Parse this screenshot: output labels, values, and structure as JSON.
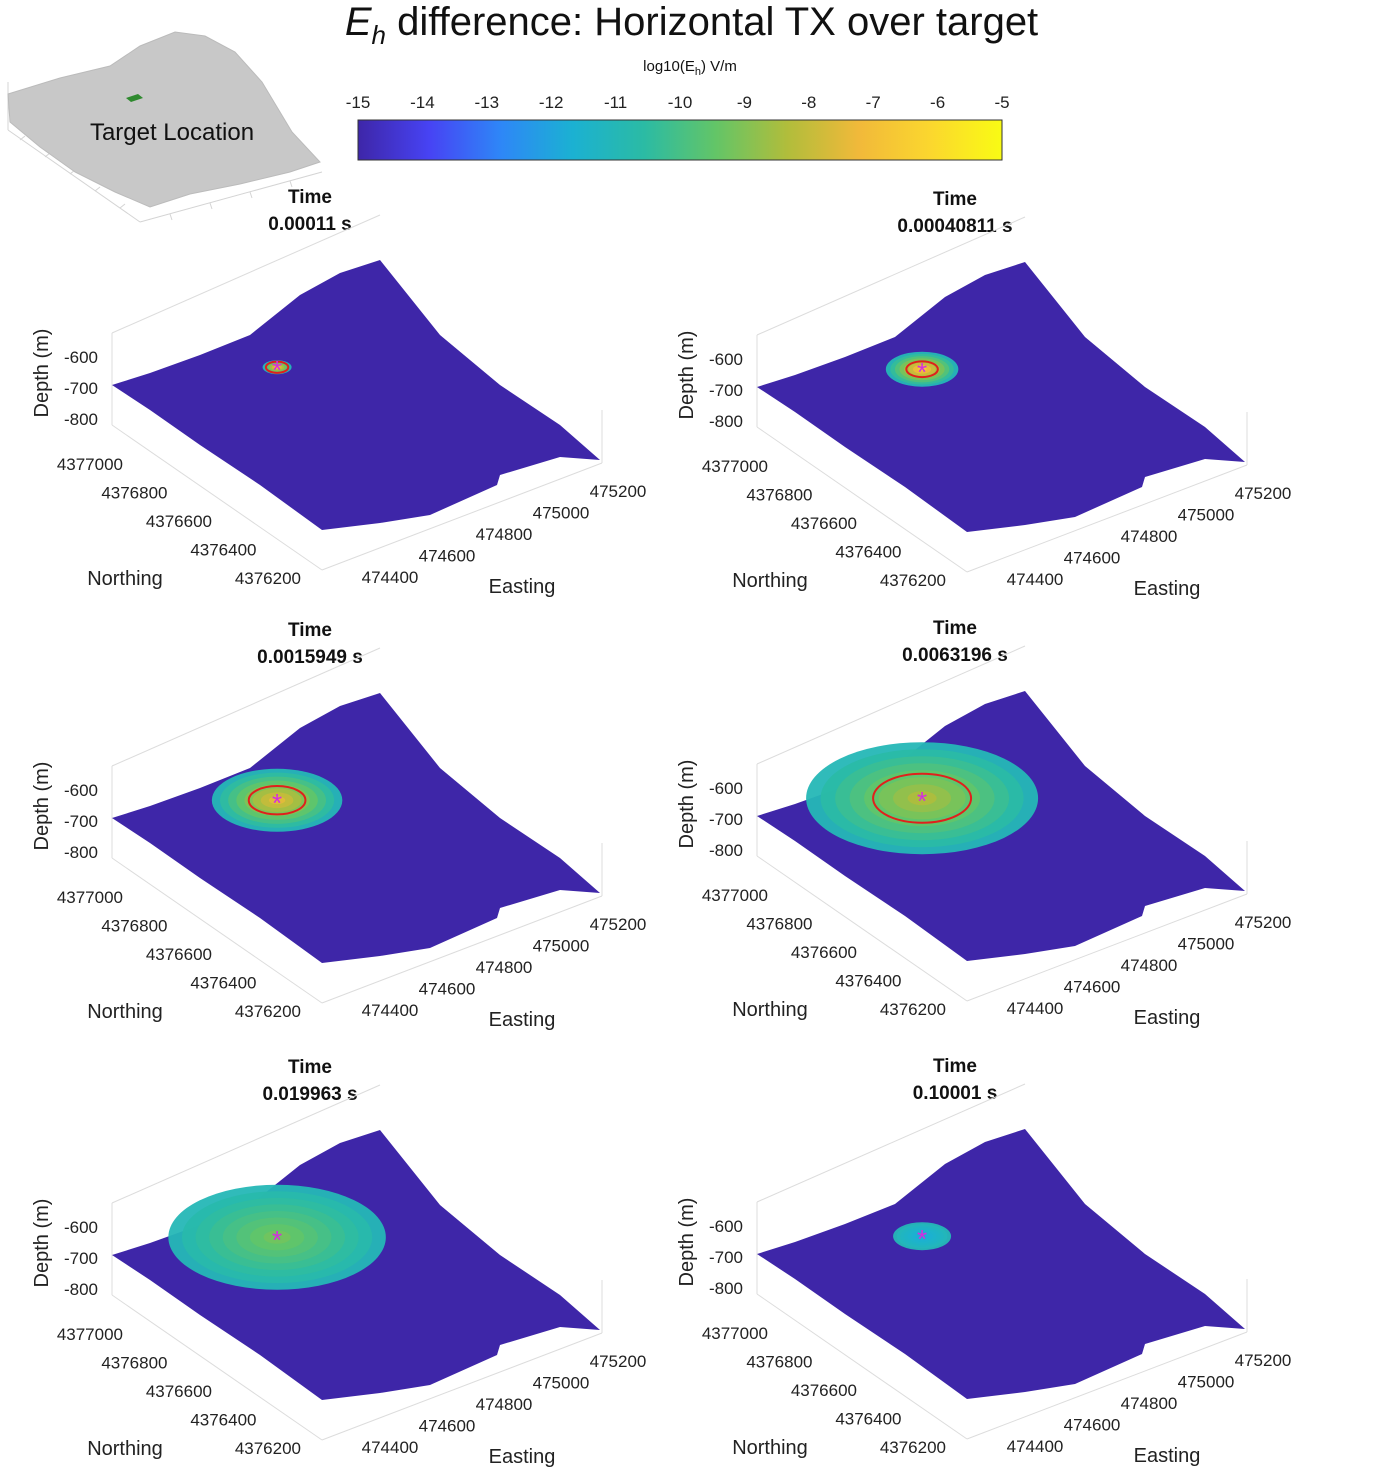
{
  "figure": {
    "title_symbol": "E",
    "title_subscript": "h",
    "title_rest": " difference: Horizontal TX over target",
    "inset_label": "Target Location"
  },
  "colorbar": {
    "label_main": "log10(E",
    "label_sub": "h",
    "label_end": ") V/m",
    "range": [
      -15,
      -5
    ],
    "ticks": [
      "-15",
      "-14",
      "-13",
      "-12",
      "-11",
      "-10",
      "-9",
      "-8",
      "-7",
      "-6",
      "-5"
    ],
    "colormap": "parula",
    "colors": [
      "#3e26a8",
      "#4743f4",
      "#2e87f7",
      "#1bb1d2",
      "#2bbba4",
      "#63c567",
      "#b1bd3b",
      "#f1b93a",
      "#fbd72e",
      "#f9fb14"
    ]
  },
  "chart_data": [
    {
      "type": "surface",
      "title_line1": "Time",
      "title_line2": "0.00011 s",
      "time_s": 0.00011,
      "zlabel": "Depth (m)",
      "xlabel": "Easting",
      "ylabel": "Northing",
      "zticks": [
        "-600",
        "-700",
        "-800"
      ],
      "xticks": [
        "474400",
        "474600",
        "474800",
        "475000",
        "475200"
      ],
      "yticks": [
        "4377000",
        "4376800",
        "4376600",
        "4376400",
        "4376200"
      ],
      "target_marker": "*",
      "anomaly_spread": 0.1,
      "anomaly_peak_log10": -6,
      "contour": true,
      "background_log10": -15
    },
    {
      "type": "surface",
      "title_line1": "Time",
      "title_line2": "0.00040811 s",
      "time_s": 0.00040811,
      "zlabel": "Depth (m)",
      "xlabel": "Easting",
      "ylabel": "Northing",
      "zticks": [
        "-600",
        "-700",
        "-800"
      ],
      "xticks": [
        "474400",
        "474600",
        "474800",
        "475000",
        "475200"
      ],
      "yticks": [
        "4377000",
        "4376800",
        "4376600",
        "4376400",
        "4376200"
      ],
      "target_marker": "*",
      "anomaly_spread": 0.25,
      "anomaly_peak_log10": -6,
      "contour": true,
      "background_log10": -15
    },
    {
      "type": "surface",
      "title_line1": "Time",
      "title_line2": "0.0015949 s",
      "time_s": 0.0015949,
      "zlabel": "Depth (m)",
      "xlabel": "Easting",
      "ylabel": "Northing",
      "zticks": [
        "-600",
        "-700",
        "-800"
      ],
      "xticks": [
        "474400",
        "474600",
        "474800",
        "475000",
        "475200"
      ],
      "yticks": [
        "4377000",
        "4376800",
        "4376600",
        "4376400",
        "4376200"
      ],
      "target_marker": "*",
      "anomaly_spread": 0.45,
      "anomaly_peak_log10": -7,
      "contour": true,
      "background_log10": -15
    },
    {
      "type": "surface",
      "title_line1": "Time",
      "title_line2": "0.0063196 s",
      "time_s": 0.0063196,
      "zlabel": "Depth (m)",
      "xlabel": "Easting",
      "ylabel": "Northing",
      "zticks": [
        "-600",
        "-700",
        "-800"
      ],
      "xticks": [
        "474400",
        "474600",
        "474800",
        "475000",
        "475200"
      ],
      "yticks": [
        "4377000",
        "4376800",
        "4376600",
        "4376400",
        "4376200"
      ],
      "target_marker": "*",
      "anomaly_spread": 0.8,
      "anomaly_peak_log10": -8,
      "contour": true,
      "background_log10": -15
    },
    {
      "type": "surface",
      "title_line1": "Time",
      "title_line2": "0.019963 s",
      "time_s": 0.019963,
      "zlabel": "Depth (m)",
      "xlabel": "Easting",
      "ylabel": "Northing",
      "zticks": [
        "-600",
        "-700",
        "-800"
      ],
      "xticks": [
        "474400",
        "474600",
        "474800",
        "475000",
        "475200"
      ],
      "yticks": [
        "4377000",
        "4376800",
        "4376600",
        "4376400",
        "4376200"
      ],
      "target_marker": "*",
      "anomaly_spread": 0.75,
      "anomaly_peak_log10": -9,
      "contour": false,
      "background_log10": -15
    },
    {
      "type": "surface",
      "title_line1": "Time",
      "title_line2": "0.10001 s",
      "time_s": 0.10001,
      "zlabel": "Depth (m)",
      "xlabel": "Easting",
      "ylabel": "Northing",
      "zticks": [
        "-600",
        "-700",
        "-800"
      ],
      "xticks": [
        "474400",
        "474600",
        "474800",
        "475000",
        "475200"
      ],
      "yticks": [
        "4377000",
        "4376800",
        "4376600",
        "4376400",
        "4376200"
      ],
      "target_marker": "*",
      "anomaly_spread": 0.2,
      "anomaly_peak_log10": -12,
      "contour": false,
      "background_log10": -15
    }
  ]
}
